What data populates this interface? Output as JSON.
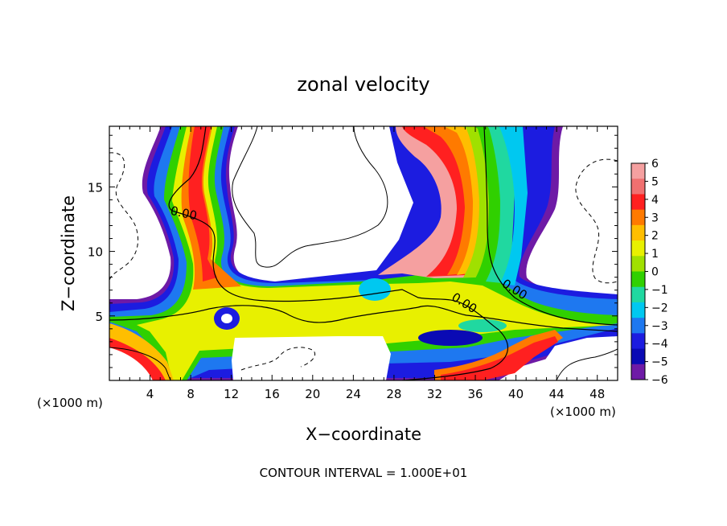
{
  "chart_data": {
    "type": "heatmap",
    "title": "zonal velocity",
    "xlabel": "X−coordinate",
    "ylabel": "Z−coordinate",
    "x_unit_left": "(×1000 m)",
    "x_unit_right": "(×1000 m)",
    "footer": "CONTOUR INTERVAL = 1.000E+01",
    "xlim": [
      0,
      50
    ],
    "ylim": [
      0,
      19.7
    ],
    "x_ticks": [
      4,
      8,
      12,
      16,
      20,
      24,
      28,
      32,
      36,
      40,
      44,
      48
    ],
    "x_tick_labels": [
      "4",
      "8",
      "12",
      "16",
      "20",
      "24",
      "28",
      "32",
      "36",
      "40",
      "44",
      "48"
    ],
    "y_ticks": [
      5,
      10,
      15
    ],
    "y_tick_labels": [
      "5",
      "10",
      "15"
    ],
    "contour_labels": [
      "0.00",
      "0.00",
      "0.00"
    ],
    "colorbar": {
      "levels": [
        6,
        5,
        4,
        3,
        2,
        1,
        0,
        -1,
        -2,
        -3,
        -4,
        -5,
        -6
      ],
      "labels": [
        "6",
        "5",
        "4",
        "3",
        "2",
        "1",
        "0",
        "−1",
        "−2",
        "−3",
        "−4",
        "−5",
        "−6"
      ],
      "colors": [
        "#f5a0a0",
        "#f07070",
        "#ff2020",
        "#ff7a00",
        "#ffbe00",
        "#e8f000",
        "#a0e000",
        "#30d000",
        "#20d8a0",
        "#00c8f0",
        "#1e78f0",
        "#1c1ce0",
        "#0a0ab4",
        "#6e1aa6"
      ]
    }
  }
}
